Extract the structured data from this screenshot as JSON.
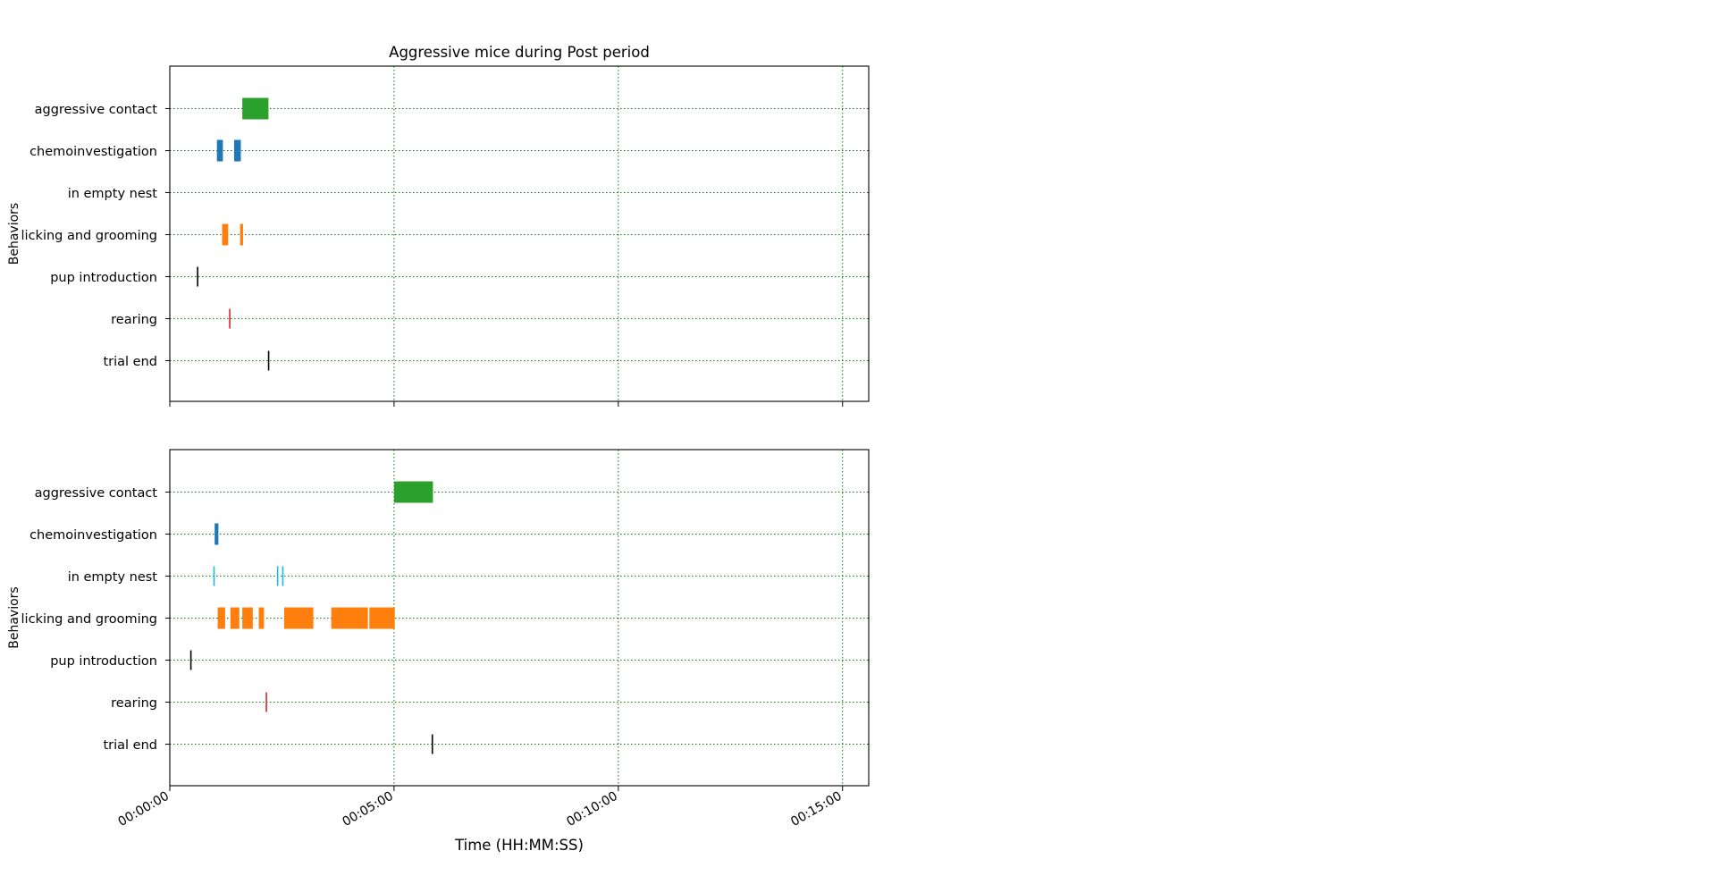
{
  "chart_data": {
    "type": "broken_barh",
    "title": "Aggressive mice during Post period",
    "xlabel": "Time (HH:MM:SS)",
    "ylabel": "Behaviors",
    "x_unit": "seconds",
    "xlim": [
      0,
      935
    ],
    "x_ticks": [
      0,
      300,
      600,
      900
    ],
    "x_tick_labels": [
      "00:00:00",
      "00:05:00",
      "00:10:00",
      "00:15:00"
    ],
    "grid": true,
    "grid_color": "#008000",
    "categories": [
      "aggressive contact",
      "chemoinvestigation",
      "in empty nest",
      "licking and grooming",
      "pup introduction",
      "rearing",
      "trial end"
    ],
    "colors": {
      "aggressive contact": "#2ca02c",
      "chemoinvestigation": "#1f77b4",
      "in empty nest": "#17becf",
      "licking and grooming": "#ff7f0e",
      "pup introduction": "#000000",
      "rearing": "#d62728",
      "trial end": "#000000"
    },
    "subplots": [
      {
        "events": {
          "aggressive contact": [
            [
              97,
              35
            ]
          ],
          "chemoinvestigation": [
            [
              63,
              8
            ],
            [
              86,
              9
            ]
          ],
          "in empty nest": [],
          "licking and grooming": [
            [
              70,
              8
            ],
            [
              94,
              4
            ]
          ],
          "pup introduction": [
            [
              36,
              1
            ]
          ],
          "rearing": [
            [
              79,
              2
            ]
          ],
          "trial end": [
            [
              131,
              1
            ]
          ]
        }
      },
      {
        "events": {
          "aggressive contact": [
            [
              300,
              52
            ]
          ],
          "chemoinvestigation": [
            [
              60,
              5
            ]
          ],
          "in empty nest": [
            [
              58,
              3
            ],
            [
              143,
              3
            ],
            [
              150,
              3
            ]
          ],
          "licking and grooming": [
            [
              64,
              10
            ],
            [
              81,
              12
            ],
            [
              97,
              14
            ],
            [
              119,
              7
            ],
            [
              153,
              39
            ],
            [
              216,
              49
            ],
            [
              267,
              34
            ]
          ],
          "pup introduction": [
            [
              27,
              1
            ]
          ],
          "rearing": [
            [
              128,
              2
            ]
          ],
          "trial end": [
            [
              350,
              1
            ]
          ]
        }
      }
    ]
  }
}
